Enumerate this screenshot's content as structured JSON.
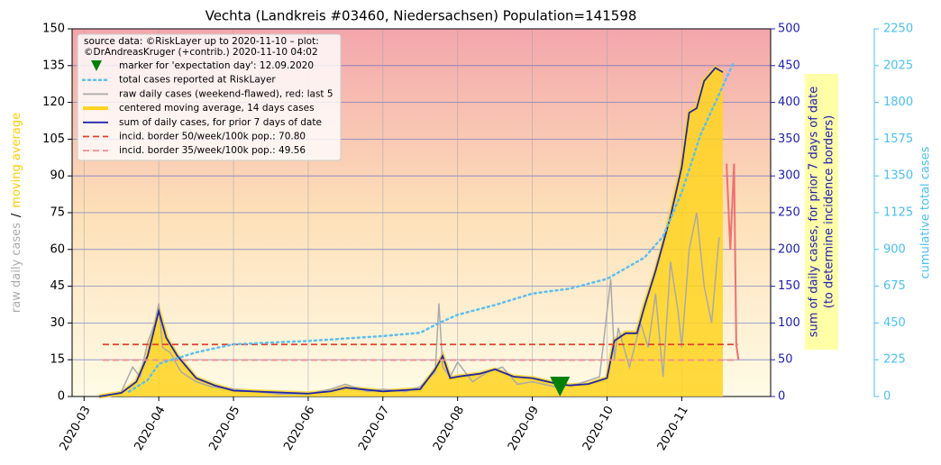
{
  "chart_data": {
    "type": "line",
    "title": "Vechta (Landkreis #03460, Niedersachsen) Population=141598",
    "legend_title": [
      "source data: ©RiskLayer up to 2020-11-10 – plot:",
      "©DrAndreasKruger (+contrib.) 2020-11-10 04:02"
    ],
    "ylabel_parts": [
      {
        "text": "raw daily cases",
        "color": "#aaaaaa"
      },
      {
        "text": "/",
        "color": "#000000"
      },
      {
        "text": "moving average",
        "color": "#ffcc00"
      }
    ],
    "y2label": [
      "sum of daily cases, for prior 7 days of date",
      "(to determine incidence borders)"
    ],
    "y3label": "cumulative total cases",
    "legend": "upper left",
    "grid": true,
    "xlim": [
      2.84,
      12.19
    ],
    "xticks": [
      {
        "value": 3,
        "label": "2020-03"
      },
      {
        "value": 4,
        "label": "2020-04"
      },
      {
        "value": 5,
        "label": "2020-05"
      },
      {
        "value": 6,
        "label": "2020-06"
      },
      {
        "value": 7,
        "label": "2020-07"
      },
      {
        "value": 8,
        "label": "2020-08"
      },
      {
        "value": 9,
        "label": "2020-09"
      },
      {
        "value": 10,
        "label": "2020-10"
      },
      {
        "value": 11,
        "label": "2020-11"
      }
    ],
    "ylim": [
      0,
      150
    ],
    "yticks": [
      0,
      15,
      30,
      45,
      60,
      75,
      90,
      105,
      120,
      135,
      150
    ],
    "y2lim": [
      0,
      500
    ],
    "y2ticks": [
      0,
      50,
      100,
      150,
      200,
      250,
      300,
      350,
      400,
      450,
      500
    ],
    "y3lim": [
      0,
      2250
    ],
    "y3ticks": [
      0,
      225,
      450,
      675,
      900,
      1125,
      1350,
      1575,
      1800,
      2025,
      2250
    ],
    "series": [
      {
        "name": "marker for 'expectation day': 12.09.2020",
        "style": "marker",
        "color": "#008000",
        "axis": "y",
        "x": [
          9.37
        ],
        "values": [
          0
        ]
      },
      {
        "name": "total cases reported at RiskLayer",
        "style": "dotted",
        "color": "#5bc0f0",
        "axis": "y3",
        "x": [
          3.6,
          3.85,
          4.0,
          4.5,
          5.0,
          6.0,
          7.0,
          7.5,
          7.75,
          8.0,
          8.5,
          9.0,
          9.5,
          10.0,
          10.5,
          10.75,
          11.0,
          11.25,
          11.5,
          11.7
        ],
        "values": [
          30,
          100,
          200,
          270,
          320,
          340,
          370,
          390,
          450,
          500,
          560,
          630,
          660,
          720,
          850,
          980,
          1250,
          1600,
          1850,
          2050
        ]
      },
      {
        "name": "raw daily cases (weekend-flawed), red: last 5",
        "style": "line",
        "color": "#aaaaaa",
        "highlight_last": 5,
        "highlight_color": "#f07070",
        "axis": "y",
        "x": [
          3.5,
          3.65,
          3.75,
          3.85,
          3.95,
          4.0,
          4.05,
          4.15,
          4.3,
          4.5,
          4.7,
          5.0,
          5.3,
          5.6,
          6.0,
          6.3,
          6.5,
          6.8,
          7.0,
          7.3,
          7.5,
          7.7,
          7.75,
          7.8,
          7.9,
          8.0,
          8.2,
          8.4,
          8.6,
          8.8,
          9.0,
          9.3,
          9.6,
          9.9,
          10.05,
          10.1,
          10.15,
          10.3,
          10.45,
          10.55,
          10.65,
          10.75,
          10.85,
          10.95,
          11.0,
          11.1,
          11.2,
          11.3,
          11.4,
          11.5,
          11.6,
          11.65,
          11.7,
          11.73,
          11.76
        ],
        "values": [
          2,
          12,
          8,
          22,
          30,
          38,
          20,
          18,
          10,
          6,
          4,
          3,
          2,
          1,
          1,
          3,
          5,
          2,
          3,
          2,
          4,
          10,
          38,
          12,
          8,
          14,
          6,
          10,
          12,
          5,
          6,
          4,
          5,
          8,
          48,
          15,
          28,
          12,
          30,
          20,
          42,
          8,
          55,
          35,
          20,
          60,
          75,
          45,
          30,
          65,
          95,
          60,
          95,
          21,
          15
        ]
      },
      {
        "name": "centered moving average, 14 days cases",
        "style": "fill",
        "color": "#ffd320",
        "axis": "y",
        "x": [
          3.2,
          3.5,
          3.7,
          3.85,
          4.0,
          4.1,
          4.25,
          4.5,
          4.75,
          5.0,
          5.5,
          6.0,
          6.3,
          6.5,
          7.0,
          7.5,
          7.7,
          7.8,
          7.9,
          8.0,
          8.3,
          8.5,
          8.75,
          9.0,
          9.3,
          9.5,
          9.75,
          10.0,
          10.1,
          10.25,
          10.4,
          10.5,
          10.65,
          10.75,
          10.85,
          11.0,
          11.1,
          11.2,
          11.3,
          11.45,
          11.55
        ],
        "values": [
          0,
          1.5,
          6,
          16.5,
          35,
          24,
          16.5,
          7.5,
          4.5,
          2.4,
          1.8,
          1.2,
          2.1,
          3.6,
          2.1,
          3,
          11,
          16.5,
          7.5,
          8.1,
          9.3,
          11,
          8.1,
          7.5,
          5.4,
          4.5,
          5.1,
          7.5,
          23,
          26,
          26,
          37,
          51,
          62,
          74,
          94,
          116,
          118,
          129,
          134,
          132
        ]
      },
      {
        "name": "sum of daily cases, for prior 7 days of date",
        "style": "line",
        "color": "#2228a8",
        "axis": "y2",
        "x": [
          3.2,
          3.5,
          3.7,
          3.85,
          4.0,
          4.1,
          4.25,
          4.5,
          4.75,
          5.0,
          5.5,
          6.0,
          6.3,
          6.5,
          7.0,
          7.5,
          7.7,
          7.8,
          7.9,
          8.0,
          8.3,
          8.5,
          8.75,
          9.0,
          9.3,
          9.5,
          9.75,
          10.0,
          10.1,
          10.25,
          10.4,
          10.5,
          10.65,
          10.75,
          10.85,
          11.0,
          11.1,
          11.2,
          11.3,
          11.45,
          11.55
        ],
        "values": [
          0,
          5,
          20,
          55,
          116,
          80,
          55,
          25,
          15,
          8,
          6,
          4,
          7,
          12,
          7,
          10,
          37,
          55,
          25,
          27,
          31,
          37,
          27,
          25,
          18,
          15,
          17,
          25,
          76,
          86,
          86,
          122,
          171,
          208,
          245,
          312,
          386,
          392,
          429,
          447,
          441
        ]
      },
      {
        "name": "incid. border 50/week/100k pop.: 70.80",
        "style": "dashed",
        "color": "#e04030",
        "axis": "y2",
        "x": [
          3.25,
          11.75
        ],
        "values": [
          70.8,
          70.8
        ]
      },
      {
        "name": "incid. border 35/week/100k pop.: 49.56",
        "style": "dashed",
        "color": "#f09090",
        "axis": "y2",
        "x": [
          3.25,
          11.75
        ],
        "values": [
          49.56,
          49.56
        ]
      }
    ]
  }
}
